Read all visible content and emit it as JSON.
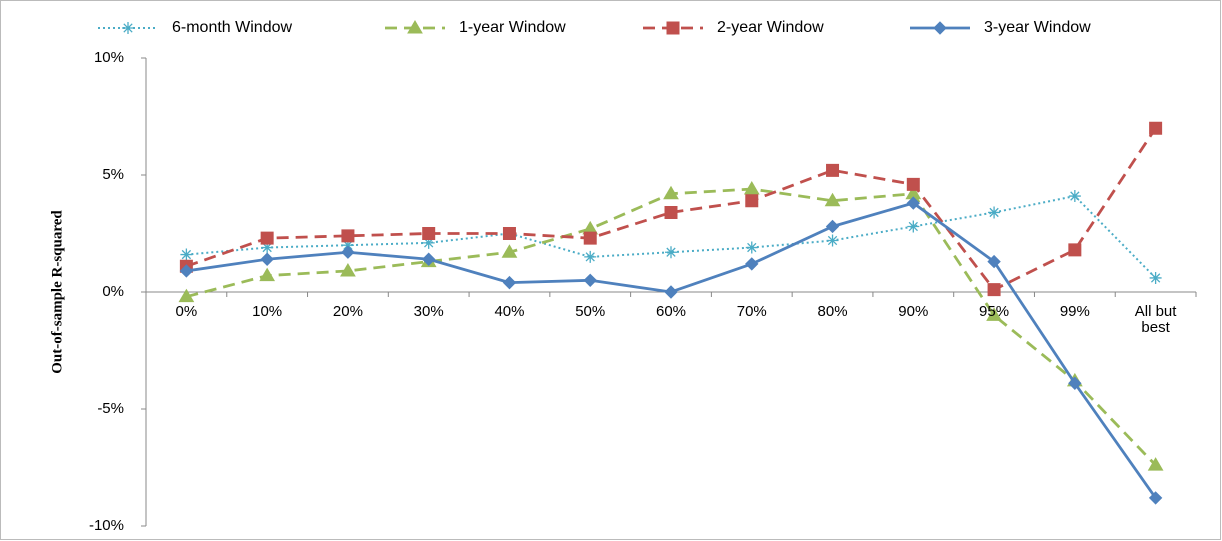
{
  "chart_data": {
    "type": "line",
    "y_label": "Out-of-sample R-squared",
    "categories": [
      "0%",
      "10%",
      "20%",
      "30%",
      "40%",
      "50%",
      "60%",
      "70%",
      "80%",
      "90%",
      "95%",
      "99%",
      "All but best"
    ],
    "series": [
      {
        "name": "6-month Window",
        "color": "#4bacc6",
        "dash": "dotted",
        "marker": "star",
        "values": [
          1.6,
          1.9,
          2.0,
          2.1,
          2.5,
          1.5,
          1.7,
          1.9,
          2.2,
          2.8,
          3.4,
          4.1,
          0.6
        ]
      },
      {
        "name": "1-year Window",
        "color": "#9bbb59",
        "dash": "dashed",
        "marker": "triangle",
        "values": [
          -0.2,
          0.7,
          0.9,
          1.3,
          1.7,
          2.7,
          4.2,
          4.4,
          3.9,
          4.2,
          -1.0,
          -3.8,
          -7.4
        ]
      },
      {
        "name": "2-year Window",
        "color": "#c0504d",
        "dash": "dashed",
        "marker": "square",
        "values": [
          1.1,
          2.3,
          2.4,
          2.5,
          2.5,
          2.3,
          3.4,
          3.9,
          5.2,
          4.6,
          0.1,
          1.8,
          7.0
        ]
      },
      {
        "name": "3-year Window",
        "color": "#4f81bd",
        "dash": "solid",
        "marker": "diamond",
        "values": [
          0.9,
          1.4,
          1.7,
          1.4,
          0.4,
          0.5,
          0.0,
          1.2,
          2.8,
          3.8,
          1.3,
          -3.9,
          -8.8
        ]
      }
    ],
    "ylim": [
      -10,
      10
    ],
    "yticks": [
      {
        "value": -10,
        "label": "-10%"
      },
      {
        "value": -5,
        "label": "-5%"
      },
      {
        "value": 0,
        "label": "0%"
      },
      {
        "value": 5,
        "label": "5%"
      },
      {
        "value": 10,
        "label": "10%"
      }
    ],
    "legend": "top"
  }
}
